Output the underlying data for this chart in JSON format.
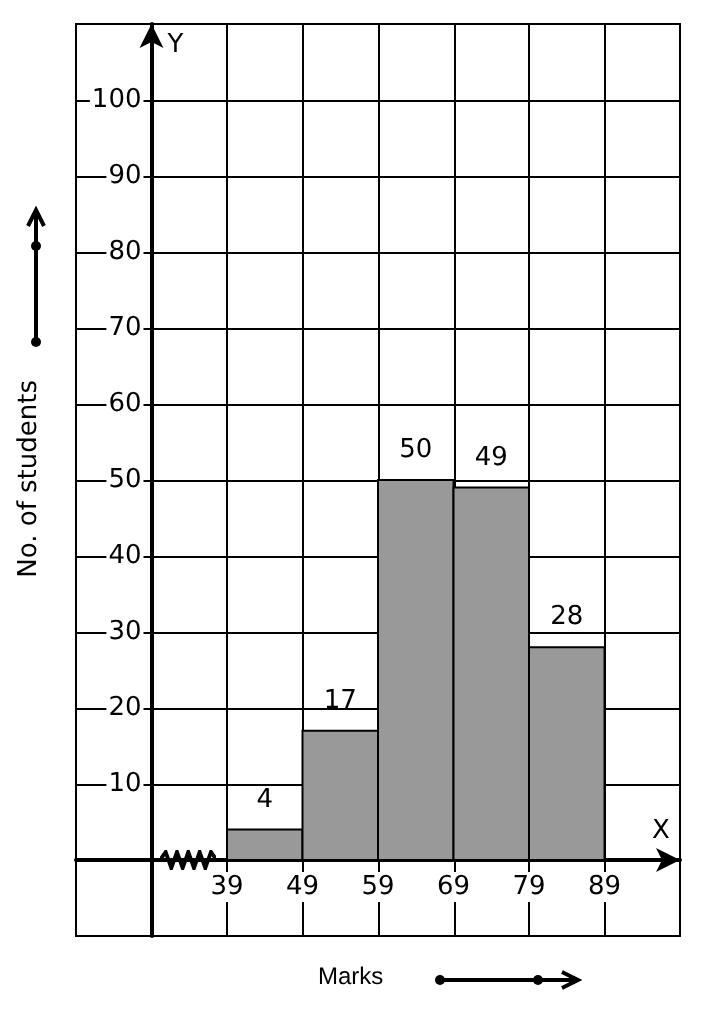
{
  "chart_data": {
    "type": "histogram",
    "xlabel": "Marks",
    "ylabel": "No. of students",
    "annotations": [
      "X",
      "Y"
    ],
    "bins": [
      39,
      49,
      59,
      69,
      79,
      89
    ],
    "values": [
      4,
      17,
      50,
      49,
      28
    ],
    "color": "#999999",
    "data_labels": true,
    "grid": true,
    "xlim": [
      19,
      99
    ],
    "ylim": [
      -10,
      110
    ],
    "xticks": [
      {
        "value": 29,
        "label": null
      },
      39,
      49,
      59,
      69,
      79,
      89
    ],
    "yticks": [
      {
        "value": 0,
        "label": null
      },
      10,
      20,
      30,
      40,
      50,
      60,
      70,
      80,
      90,
      100
    ]
  }
}
